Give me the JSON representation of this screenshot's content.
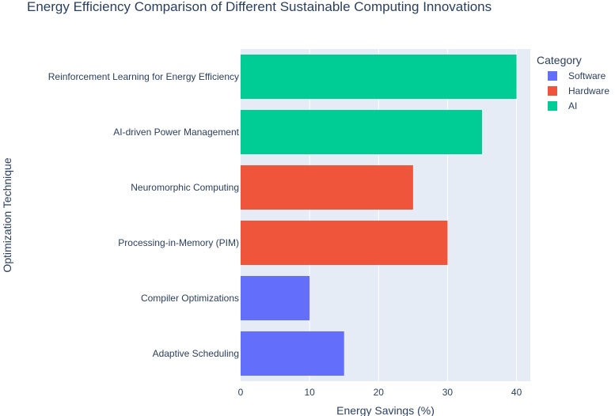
{
  "chart_data": {
    "type": "bar",
    "orientation": "horizontal",
    "title": "Energy Efficiency Comparison of Different Sustainable Computing Innovations",
    "xlabel": "Energy Savings (%)",
    "ylabel": "Optimization Technique",
    "xlim": [
      0,
      42
    ],
    "xticks": [
      0,
      10,
      20,
      30,
      40
    ],
    "grid": true,
    "categories": [
      "Adaptive Scheduling",
      "Compiler Optimizations",
      "Processing-in-Memory (PIM)",
      "Neuromorphic Computing",
      "AI-driven Power Management",
      "Reinforcement Learning for Energy Efficiency"
    ],
    "series": [
      {
        "name": "Software",
        "color": "#636efa",
        "points": [
          {
            "category": "Adaptive Scheduling",
            "value": 15
          },
          {
            "category": "Compiler Optimizations",
            "value": 10
          }
        ]
      },
      {
        "name": "Hardware",
        "color": "#ef553b",
        "points": [
          {
            "category": "Processing-in-Memory (PIM)",
            "value": 30
          },
          {
            "category": "Neuromorphic Computing",
            "value": 25
          }
        ]
      },
      {
        "name": "AI",
        "color": "#00cc96",
        "points": [
          {
            "category": "AI-driven Power Management",
            "value": 35
          },
          {
            "category": "Reinforcement Learning for Energy Efficiency",
            "value": 40
          }
        ]
      }
    ],
    "legend": {
      "title": "Category",
      "placement": "top-right"
    }
  }
}
